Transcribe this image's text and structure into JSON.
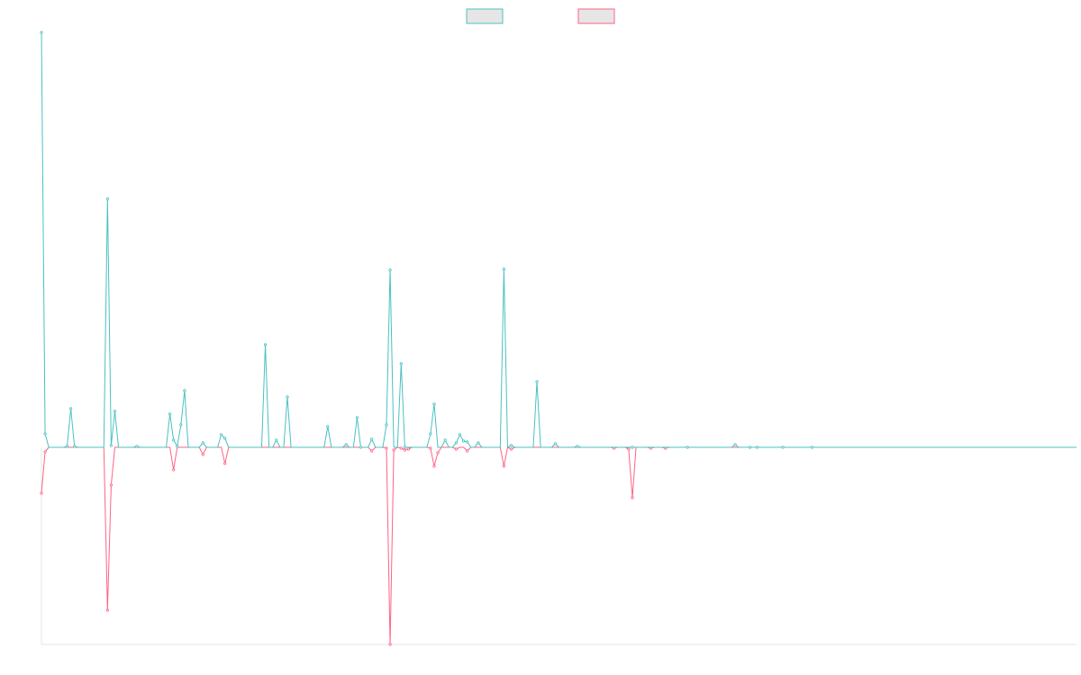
{
  "chart_data": {
    "type": "line",
    "title": "",
    "xlabel": "",
    "ylabel": "",
    "grid": false,
    "legend": {
      "placement": "top-center",
      "entries": [
        {
          "label": "",
          "border_color": "#4bc0c0",
          "fill_color": "#e6e6e6"
        },
        {
          "label": "",
          "border_color": "#ff6384",
          "fill_color": "#e6e6e6"
        }
      ]
    },
    "ylim": [
      -219,
      461
    ],
    "xlim": [
      0,
      282
    ],
    "series": [
      {
        "color": "#4bc0c0",
        "x": [
          0,
          1,
          7,
          8,
          9,
          18,
          19,
          20,
          26,
          35,
          36,
          37,
          38,
          39,
          44,
          49,
          50,
          61,
          64,
          67,
          78,
          83,
          86,
          87,
          90,
          94,
          95,
          98,
          99,
          106,
          107,
          110,
          113,
          114,
          115,
          116,
          119,
          126,
          128,
          135,
          140,
          146,
          161,
          176,
          189,
          193,
          195,
          202,
          210
        ],
        "y": [
          461,
          15,
          1,
          43,
          1,
          276,
          2,
          40,
          1,
          37,
          8,
          1,
          25,
          63,
          5,
          14,
          10,
          114,
          8,
          56,
          23,
          3,
          33,
          0,
          9,
          25,
          197,
          93,
          0,
          15,
          48,
          8,
          5,
          14,
          7,
          6,
          5,
          198,
          2,
          73,
          4,
          1,
          0,
          0,
          3,
          0,
          0,
          0,
          0
        ]
      },
      {
        "color": "#ff6384",
        "x": [
          0,
          1,
          18,
          19,
          36,
          44,
          50,
          90,
          94,
          95,
          96,
          98,
          99,
          100,
          106,
          107,
          108,
          113,
          116,
          126,
          128,
          156,
          160,
          161,
          166,
          170
        ],
        "y": [
          -51,
          -5,
          -181,
          -42,
          -25,
          -8,
          -18,
          -4,
          -1,
          -219,
          -3,
          -1,
          -3,
          -2,
          -1,
          -21,
          -6,
          -2,
          -4,
          -21,
          -2,
          -1,
          -2,
          -56,
          -1,
          -1
        ]
      }
    ]
  }
}
